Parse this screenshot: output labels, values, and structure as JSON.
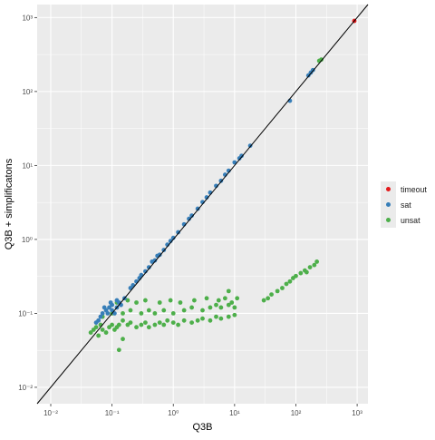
{
  "chart_data": {
    "type": "scatter",
    "title": "",
    "xlabel": "Q3B",
    "ylabel": "Q3B + simplificatons",
    "xscale": "log10",
    "yscale": "log10",
    "xlim": [
      0.006,
      1500
    ],
    "ylim": [
      0.006,
      1500
    ],
    "tick_labels": [
      "10⁻²",
      "10⁻¹",
      "10⁰",
      "10¹",
      "10²",
      "10³"
    ],
    "tick_values": [
      0.01,
      0.1,
      1,
      10,
      100,
      1000
    ],
    "grid": true,
    "diagonal_reference_line": true,
    "legend_position": "right",
    "colors": {
      "timeout": "#e41a1c",
      "sat": "#377eb8",
      "unsat": "#4daf4a",
      "panel": "#ebebeb",
      "grid": "#ffffff"
    },
    "series": [
      {
        "name": "timeout",
        "points": [
          [
            900,
            900
          ]
        ]
      },
      {
        "name": "sat",
        "points": [
          [
            0.06,
            0.08
          ],
          [
            0.07,
            0.1
          ],
          [
            0.08,
            0.11
          ],
          [
            0.09,
            0.12
          ],
          [
            0.1,
            0.13
          ],
          [
            0.11,
            0.1
          ],
          [
            0.12,
            0.12
          ],
          [
            0.13,
            0.14
          ],
          [
            0.065,
            0.09
          ],
          [
            0.075,
            0.12
          ],
          [
            0.085,
            0.1
          ],
          [
            0.095,
            0.14
          ],
          [
            0.055,
            0.075
          ],
          [
            0.1,
            0.11
          ],
          [
            0.12,
            0.15
          ],
          [
            0.14,
            0.13
          ],
          [
            0.16,
            0.16
          ],
          [
            0.2,
            0.22
          ],
          [
            0.22,
            0.24
          ],
          [
            0.25,
            0.27
          ],
          [
            0.28,
            0.3
          ],
          [
            0.3,
            0.33
          ],
          [
            0.35,
            0.37
          ],
          [
            0.4,
            0.42
          ],
          [
            0.45,
            0.5
          ],
          [
            0.5,
            0.52
          ],
          [
            0.55,
            0.6
          ],
          [
            0.6,
            0.62
          ],
          [
            0.7,
            0.72
          ],
          [
            0.8,
            0.85
          ],
          [
            0.9,
            0.95
          ],
          [
            1.0,
            1.05
          ],
          [
            1.2,
            1.25
          ],
          [
            1.5,
            1.6
          ],
          [
            1.8,
            1.9
          ],
          [
            2.0,
            2.1
          ],
          [
            2.5,
            2.6
          ],
          [
            3.0,
            3.2
          ],
          [
            3.5,
            3.7
          ],
          [
            4.0,
            4.3
          ],
          [
            5.0,
            5.3
          ],
          [
            6.0,
            6.2
          ],
          [
            7.0,
            7.5
          ],
          [
            8.0,
            8.5
          ],
          [
            10,
            11
          ],
          [
            12,
            12.5
          ],
          [
            13,
            13.5
          ],
          [
            18,
            18.5
          ],
          [
            80,
            75
          ],
          [
            160,
            165
          ],
          [
            175,
            180
          ],
          [
            190,
            195
          ]
        ]
      },
      {
        "name": "unsat",
        "points": [
          [
            0.045,
            0.055
          ],
          [
            0.05,
            0.06
          ],
          [
            0.055,
            0.065
          ],
          [
            0.06,
            0.05
          ],
          [
            0.065,
            0.07
          ],
          [
            0.07,
            0.06
          ],
          [
            0.08,
            0.055
          ],
          [
            0.09,
            0.065
          ],
          [
            0.1,
            0.07
          ],
          [
            0.11,
            0.06
          ],
          [
            0.12,
            0.065
          ],
          [
            0.13,
            0.07
          ],
          [
            0.15,
            0.08
          ],
          [
            0.18,
            0.07
          ],
          [
            0.2,
            0.075
          ],
          [
            0.25,
            0.065
          ],
          [
            0.3,
            0.07
          ],
          [
            0.35,
            0.075
          ],
          [
            0.4,
            0.065
          ],
          [
            0.5,
            0.07
          ],
          [
            0.6,
            0.075
          ],
          [
            0.7,
            0.07
          ],
          [
            0.8,
            0.08
          ],
          [
            1.0,
            0.075
          ],
          [
            1.2,
            0.07
          ],
          [
            1.5,
            0.08
          ],
          [
            2.0,
            0.075
          ],
          [
            2.5,
            0.08
          ],
          [
            3.0,
            0.085
          ],
          [
            4.0,
            0.08
          ],
          [
            5.0,
            0.09
          ],
          [
            6.0,
            0.085
          ],
          [
            8.0,
            0.09
          ],
          [
            10,
            0.095
          ],
          [
            0.07,
            0.09
          ],
          [
            0.1,
            0.1
          ],
          [
            0.15,
            0.1
          ],
          [
            0.2,
            0.11
          ],
          [
            0.3,
            0.1
          ],
          [
            0.4,
            0.11
          ],
          [
            0.5,
            0.1
          ],
          [
            0.7,
            0.11
          ],
          [
            1.0,
            0.1
          ],
          [
            1.5,
            0.11
          ],
          [
            2.0,
            0.12
          ],
          [
            3.0,
            0.11
          ],
          [
            4.0,
            0.12
          ],
          [
            5.0,
            0.13
          ],
          [
            6.0,
            0.12
          ],
          [
            8.0,
            0.13
          ],
          [
            10,
            0.12
          ],
          [
            0.12,
            0.14
          ],
          [
            0.18,
            0.15
          ],
          [
            0.25,
            0.14
          ],
          [
            0.35,
            0.15
          ],
          [
            0.6,
            0.14
          ],
          [
            0.9,
            0.15
          ],
          [
            1.3,
            0.14
          ],
          [
            2.2,
            0.15
          ],
          [
            3.5,
            0.16
          ],
          [
            5.5,
            0.15
          ],
          [
            7.0,
            0.16
          ],
          [
            9.0,
            0.14
          ],
          [
            0.15,
            0.045
          ],
          [
            0.13,
            0.032
          ],
          [
            8.0,
            0.2
          ],
          [
            11,
            0.16
          ],
          [
            30,
            0.15
          ],
          [
            35,
            0.16
          ],
          [
            40,
            0.18
          ],
          [
            50,
            0.2
          ],
          [
            60,
            0.22
          ],
          [
            70,
            0.25
          ],
          [
            80,
            0.27
          ],
          [
            90,
            0.3
          ],
          [
            100,
            0.32
          ],
          [
            120,
            0.35
          ],
          [
            140,
            0.38
          ],
          [
            150,
            0.36
          ],
          [
            170,
            0.42
          ],
          [
            200,
            0.45
          ],
          [
            220,
            0.5
          ],
          [
            240,
            260
          ],
          [
            260,
            270
          ]
        ]
      }
    ]
  }
}
